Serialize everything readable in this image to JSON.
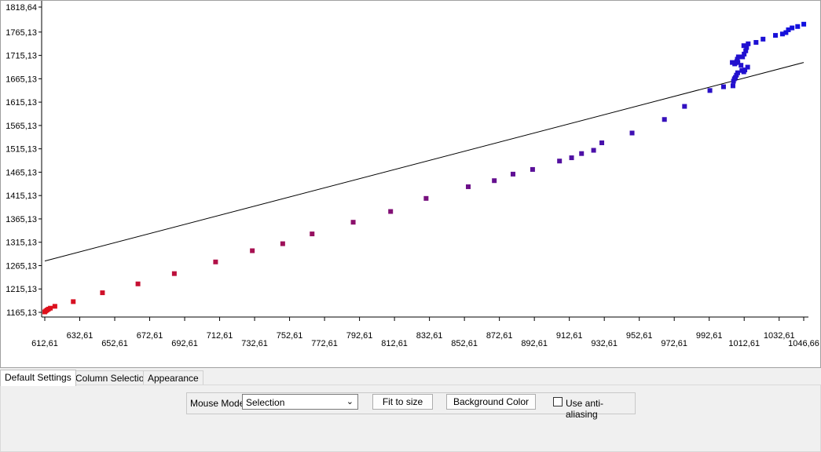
{
  "chart_data": {
    "type": "scatter",
    "title": "",
    "xlabel": "",
    "ylabel": "",
    "xlim": [
      610.61,
      1047.66
    ],
    "ylim": [
      1160.13,
      1822.64
    ],
    "x_ticks": [
      "612,61",
      "632,61",
      "652,61",
      "672,61",
      "692,61",
      "712,61",
      "732,61",
      "752,61",
      "772,61",
      "792,61",
      "812,61",
      "832,61",
      "852,61",
      "872,61",
      "892,61",
      "912,61",
      "932,61",
      "952,61",
      "972,61",
      "992,61",
      "1012,61",
      "1032,61",
      "1046,66"
    ],
    "x_tick_values": [
      612.61,
      632.61,
      652.61,
      672.61,
      692.61,
      712.61,
      732.61,
      752.61,
      772.61,
      792.61,
      812.61,
      832.61,
      852.61,
      872.61,
      892.61,
      912.61,
      932.61,
      952.61,
      972.61,
      992.61,
      1012.61,
      1032.61,
      1046.66
    ],
    "y_ticks": [
      "1165,13",
      "1215,13",
      "1265,13",
      "1315,13",
      "1365,13",
      "1415,13",
      "1465,13",
      "1515,13",
      "1565,13",
      "1615,13",
      "1665,13",
      "1715,13",
      "1765,13",
      "1818,64"
    ],
    "y_tick_values": [
      1165.13,
      1215.13,
      1265.13,
      1315.13,
      1365.13,
      1415.13,
      1465.13,
      1515.13,
      1565.13,
      1615.13,
      1665.13,
      1715.13,
      1765.13,
      1818.64
    ],
    "reference_line": {
      "x": [
        612.61,
        1046.66
      ],
      "y": [
        1275,
        1700
      ]
    },
    "points": [
      [
        612.6,
        1166
      ],
      [
        613.2,
        1168
      ],
      [
        613.9,
        1170
      ],
      [
        614.7,
        1172
      ],
      [
        615.8,
        1174
      ],
      [
        618.4,
        1178
      ],
      [
        628.9,
        1188
      ],
      [
        645.6,
        1207
      ],
      [
        665.9,
        1226
      ],
      [
        686.7,
        1248
      ],
      [
        710.3,
        1273
      ],
      [
        731.3,
        1297
      ],
      [
        748.7,
        1312
      ],
      [
        765.5,
        1333
      ],
      [
        789,
        1358
      ],
      [
        810.4,
        1381
      ],
      [
        830.7,
        1409
      ],
      [
        854.8,
        1434
      ],
      [
        869.7,
        1447
      ],
      [
        880.4,
        1461
      ],
      [
        891.6,
        1471
      ],
      [
        907,
        1489
      ],
      [
        913.9,
        1496
      ],
      [
        919.6,
        1505
      ],
      [
        926.5,
        1512
      ],
      [
        931.2,
        1528
      ],
      [
        948.5,
        1549
      ],
      [
        967,
        1578
      ],
      [
        978.5,
        1606
      ],
      [
        993,
        1640
      ],
      [
        1000.8,
        1648
      ],
      [
        1006.2,
        1650
      ],
      [
        1006.5,
        1660
      ],
      [
        1007,
        1665
      ],
      [
        1007.6,
        1668
      ],
      [
        1008.2,
        1673
      ],
      [
        1008.9,
        1678
      ],
      [
        1011.3,
        1683
      ],
      [
        1012.4,
        1680
      ],
      [
        1013,
        1684
      ],
      [
        1014.6,
        1690
      ],
      [
        1010.8,
        1694
      ],
      [
        1009,
        1700
      ],
      [
        1008.4,
        1702
      ],
      [
        1007.2,
        1697
      ],
      [
        1005.8,
        1700
      ],
      [
        1007.5,
        1699
      ],
      [
        1008.7,
        1707
      ],
      [
        1009.3,
        1712
      ],
      [
        1011.7,
        1712
      ],
      [
        1012.6,
        1718
      ],
      [
        1013.5,
        1725
      ],
      [
        1014,
        1732
      ],
      [
        1012.4,
        1736
      ],
      [
        1014.9,
        1740
      ],
      [
        1019.4,
        1743
      ],
      [
        1023.4,
        1750
      ],
      [
        1030.5,
        1758
      ],
      [
        1034.5,
        1761
      ],
      [
        1036.5,
        1764
      ],
      [
        1037.9,
        1770
      ],
      [
        1040,
        1774
      ],
      [
        1043.2,
        1777
      ],
      [
        1046.7,
        1782
      ]
    ],
    "colors": {
      "start": "#e0101a",
      "end": "#1010e0",
      "line": "#000000"
    },
    "grid": false,
    "legend": "none"
  },
  "tabs": [
    {
      "label": "Default Settings",
      "active": true
    },
    {
      "label": "Column Selection",
      "active": false
    },
    {
      "label": "Appearance",
      "active": false
    }
  ],
  "toolbar": {
    "mouse_mode_label": "Mouse Mode",
    "mouse_mode_value": "Selection",
    "fit_button": "Fit to size",
    "background_button": "Background Color",
    "antialias_label": "Use anti-aliasing",
    "antialias_checked": false
  }
}
